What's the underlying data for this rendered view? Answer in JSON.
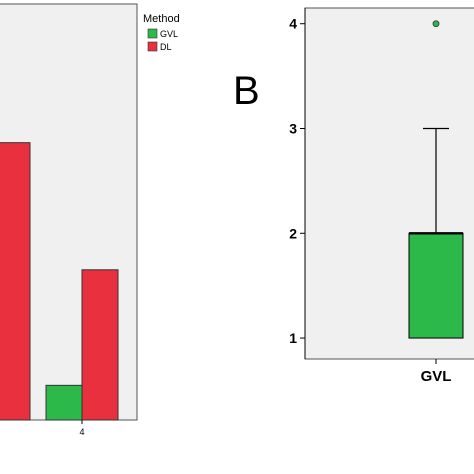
{
  "chart_data": [
    {
      "type": "bar",
      "panel_label": "",
      "legend": {
        "title": "Method",
        "placement": "top-right",
        "entries": [
          {
            "name": "GVL",
            "color": "#2db84a"
          },
          {
            "name": "DL",
            "color": "#e8303f"
          }
        ]
      },
      "categories": [
        "",
        "4"
      ],
      "series": [
        {
          "name": "GVL",
          "values": [
            null,
            3
          ]
        },
        {
          "name": "DL",
          "values": [
            24,
            13
          ]
        }
      ],
      "ylim": [
        0,
        36
      ],
      "grid": false
    },
    {
      "type": "box",
      "panel_label": "B",
      "categories": [
        "GVL"
      ],
      "yticks": [
        1,
        2,
        3,
        4
      ],
      "ylim": [
        0.8,
        4.15
      ],
      "grid": false,
      "color": "#2db84a",
      "boxes": [
        {
          "category": "GVL",
          "min": 1,
          "q1": 1,
          "median": 2,
          "q3": 2,
          "max": 3,
          "outliers": [
            4
          ]
        }
      ]
    }
  ]
}
